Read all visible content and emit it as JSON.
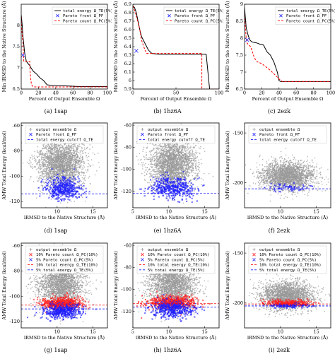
{
  "chart_data": [
    {
      "id": "a",
      "type": "line",
      "caption": "(a)  1sap",
      "xlabel": "Percent of Output Ensemble Ω",
      "ylabel": "Min lRMSD to the Native Structure (Å)",
      "xlim": [
        0,
        100
      ],
      "ylim": [
        6.5,
        8.5
      ],
      "xticks": [
        0,
        20,
        40,
        60,
        80,
        100
      ],
      "yticks": [
        6.5,
        7,
        7.5,
        8
      ],
      "legend": [
        "total energy Ω_TE(5%)",
        "Pareto front Ω_PF",
        "Pareto count Ω_PC(5%)"
      ],
      "series": [
        {
          "name": "total energy Ω_TE(5%)",
          "color": "#000000",
          "dash": "",
          "x": [
            0,
            1,
            2,
            3,
            4,
            5,
            6,
            8,
            10,
            12,
            14,
            18,
            22,
            26,
            30,
            38,
            46,
            56,
            66,
            76,
            86,
            100
          ],
          "y": [
            8.25,
            8.05,
            7.75,
            7.55,
            7.35,
            7.25,
            7.15,
            7.1,
            7.05,
            6.98,
            6.92,
            6.85,
            6.76,
            6.7,
            6.6,
            6.58,
            6.58,
            6.57,
            6.56,
            6.56,
            6.56,
            6.56
          ]
        },
        {
          "name": "Pareto count Ω_PC(5%)",
          "color": "#ff0000",
          "dash": "3,2",
          "x": [
            0,
            1,
            2,
            3,
            5,
            7,
            9,
            10,
            10,
            11,
            12,
            14,
            18,
            24,
            100
          ],
          "y": [
            8.2,
            7.8,
            7.6,
            7.15,
            7.15,
            7.15,
            7.15,
            7.15,
            7.0,
            6.75,
            6.6,
            6.55,
            6.55,
            6.55,
            6.55
          ]
        }
      ],
      "pareto_front": [
        {
          "x": 2,
          "y": 7.3
        }
      ]
    },
    {
      "id": "b",
      "type": "line",
      "caption": "(b)  1hz6A",
      "xlabel": "Percent of Output Ensemble Ω",
      "ylabel": "Min lRMSD to the Native Structure (Å)",
      "xlim": [
        0,
        100
      ],
      "ylim": [
        5.9,
        6.9
      ],
      "xticks": [
        0,
        50,
        100
      ],
      "yticks": [
        5.9,
        6,
        6.1,
        6.2,
        6.3,
        6.4,
        6.5,
        6.6,
        6.7,
        6.8,
        6.9
      ],
      "legend": [
        "total energy Ω_TE(5%)",
        "Pareto front Ω_PF",
        "Pareto count Ω_PC(5%)"
      ],
      "series": [
        {
          "name": "total energy Ω_TE(5%)",
          "color": "#000000",
          "dash": "",
          "x": [
            0,
            2,
            4,
            6,
            8,
            10,
            12,
            15,
            18,
            22,
            30,
            50,
            70,
            85,
            88,
            89,
            100
          ],
          "y": [
            6.88,
            6.86,
            6.8,
            6.7,
            6.6,
            6.52,
            6.48,
            6.42,
            6.36,
            6.32,
            6.31,
            6.31,
            6.31,
            6.31,
            6.0,
            5.9,
            5.9
          ]
        },
        {
          "name": "Pareto count Ω_PC(5%)",
          "color": "#ff0000",
          "dash": "3,2",
          "x": [
            0,
            3,
            6,
            8,
            10,
            12,
            14,
            16,
            20,
            40,
            60,
            80,
            80,
            82,
            100
          ],
          "y": [
            6.88,
            6.8,
            6.68,
            6.6,
            6.48,
            6.42,
            6.36,
            6.32,
            6.32,
            6.32,
            6.32,
            6.32,
            5.9,
            5.9,
            5.9
          ]
        }
      ],
      "pareto_front": [
        {
          "x": 4,
          "y": 6.35
        }
      ]
    },
    {
      "id": "c",
      "type": "line",
      "caption": "(c)  2ezk",
      "xlabel": "Percent of Output Ensemble Ω",
      "ylabel": "Min lRMSD to the Native Structure (Å)",
      "xlim": [
        0,
        100
      ],
      "ylim": [
        6.5,
        9
      ],
      "xticks": [
        0,
        20,
        40,
        60,
        80,
        100
      ],
      "yticks": [
        6.5,
        7,
        7.5,
        8,
        8.5,
        9
      ],
      "legend": [
        "total energy Ω_TE(5%)",
        "Pareto front Ω_PF",
        "Pareto count Ω_PC(5%)"
      ],
      "series": [
        {
          "name": "total energy Ω_TE(5%)",
          "color": "#000000",
          "dash": "",
          "x": [
            0,
            1,
            2,
            4,
            6,
            8,
            10,
            14,
            18,
            22,
            26,
            30,
            34,
            38,
            40,
            42,
            100
          ],
          "y": [
            8.9,
            8.6,
            8.3,
            8.1,
            7.95,
            7.9,
            7.88,
            7.86,
            7.82,
            7.8,
            7.6,
            7.5,
            7.3,
            7.0,
            6.75,
            6.72,
            6.72
          ]
        },
        {
          "name": "Pareto count Ω_PC(5%)",
          "color": "#ff0000",
          "dash": "3,2",
          "x": [
            0,
            1,
            2,
            3,
            5,
            7,
            9,
            11,
            13,
            15,
            20,
            25,
            30,
            34,
            38,
            42,
            44,
            100
          ],
          "y": [
            8.7,
            8.3,
            8.0,
            7.85,
            7.8,
            7.75,
            7.6,
            7.45,
            7.35,
            7.3,
            7.25,
            7.15,
            7.05,
            6.95,
            6.85,
            6.75,
            6.72,
            6.72
          ]
        }
      ],
      "pareto_front": [
        {
          "x": 3,
          "y": 7.95
        }
      ]
    },
    {
      "id": "d",
      "type": "scatter",
      "caption": "(d)  1sap",
      "xlabel": "lRMSD to the Native Structure (Å)",
      "ylabel": "AMW Total Energy (kcal/mol)",
      "xlim": [
        5,
        17
      ],
      "ylim": [
        -125,
        -58
      ],
      "xticks": [
        10,
        15
      ],
      "yticks": [
        -120,
        -100,
        -80,
        -60
      ],
      "legend": [
        "output ensemble Ω",
        "Pareto front Ω_PF",
        "total energy cutoff Ω_TE"
      ],
      "cloud": {
        "cx": 10.6,
        "cy": -90,
        "sx": 1.5,
        "sy": 10,
        "n": 2600
      },
      "blue": {
        "cx": 10.8,
        "cy": -110,
        "sx": 1.3,
        "sy": 4.5,
        "n": 420,
        "ymin": -120
      },
      "cutoff": -114
    },
    {
      "id": "e",
      "type": "scatter",
      "caption": "(e)  1hz6A",
      "xlabel": "lRMSD to the Native Structure (Å)",
      "ylabel": "AMW Total Energy (kcal/mol)",
      "xlim": [
        5,
        17
      ],
      "ylim": [
        -135,
        -58
      ],
      "xticks": [
        5,
        10,
        15
      ],
      "yticks": [
        -120,
        -100,
        -80,
        -60
      ],
      "legend": [
        "output ensemble Ω",
        "Pareto front Ω_PF",
        "total energy cutoff Ω_TE"
      ],
      "cloud": {
        "cx": 10.5,
        "cy": -95,
        "sx": 1.5,
        "sy": 11,
        "n": 2600
      },
      "blue": {
        "cx": 10.5,
        "cy": -117,
        "sx": 1.6,
        "sy": 5,
        "n": 420,
        "ymin": -130
      },
      "cutoff": -122
    },
    {
      "id": "f",
      "type": "scatter",
      "caption": "(f)  2ezk",
      "xlabel": "lRMSD to the Native Structure (Å)",
      "ylabel": "AMW Total Energy (kcal/mol)",
      "xlim": [
        5,
        17
      ],
      "ylim": [
        -225,
        -140
      ],
      "xticks": [
        10,
        15
      ],
      "yticks": [
        -200,
        -150
      ],
      "legend": [
        "output ensemble Ω",
        "Pareto front Ω_PF",
        "total energy cutoff Ω_TE"
      ],
      "cloud": {
        "cx": 11,
        "cy": -193,
        "sx": 1.7,
        "sy": 7,
        "n": 2400
      },
      "blue": {
        "cx": 11,
        "cy": -205,
        "sx": 1.6,
        "sy": 2,
        "n": 60,
        "ymin": -212
      },
      "cutoff": -206
    },
    {
      "id": "g",
      "type": "scatter",
      "caption": "(g)  1sap",
      "xlabel": "lRMSD to the Native Structure (Å)",
      "ylabel": "AMW Total Energy (kcal/mol)",
      "xlim": [
        5,
        17
      ],
      "ylim": [
        -125,
        -58
      ],
      "xticks": [
        10,
        15
      ],
      "yticks": [
        -120,
        -100,
        -80,
        -60
      ],
      "legend": [
        "output ensemble Ω",
        "10% Pareto count Ω_PC(10%)",
        "5% Pareto count Ω_PC(5%)",
        "10% total energy Ω_TE(10%)",
        "5% total energy Ω_TE(5%)"
      ],
      "cloud": {
        "cx": 10.6,
        "cy": -90,
        "sx": 1.5,
        "sy": 10,
        "n": 2600
      },
      "red": {
        "cx": 10.6,
        "cy": -106,
        "sx": 1.3,
        "sy": 2.5,
        "n": 600
      },
      "blue": {
        "cx": 10.7,
        "cy": -112,
        "sx": 1.3,
        "sy": 3,
        "n": 420,
        "ymin": -120
      },
      "cutoffs": [
        {
          "y": -107,
          "color": "#ff0000"
        },
        {
          "y": -110,
          "color": "#0000ff"
        }
      ]
    },
    {
      "id": "h",
      "type": "scatter",
      "caption": "(h)  1hz6A",
      "xlabel": "lRMSD to the Native Structure (Å)",
      "ylabel": "AMW Total Energy (kcal/mol)",
      "xlim": [
        5,
        17
      ],
      "ylim": [
        -135,
        -58
      ],
      "xticks": [
        5,
        10,
        15
      ],
      "yticks": [
        -120,
        -100,
        -80,
        -60
      ],
      "legend": [
        "output ensemble Ω",
        "10% Pareto count Ω_PC(10%)",
        "5% Pareto count Ω_PC(5%)",
        "10% total energy Ω_TE(10%)",
        "5% total energy Ω_TE(5%)"
      ],
      "cloud": {
        "cx": 10.5,
        "cy": -95,
        "sx": 1.5,
        "sy": 11,
        "n": 2600
      },
      "red": {
        "cx": 10.5,
        "cy": -112,
        "sx": 1.6,
        "sy": 3,
        "n": 600
      },
      "blue": {
        "cx": 10.5,
        "cy": -118,
        "sx": 1.6,
        "sy": 4,
        "n": 420,
        "ymin": -130
      },
      "cutoffs": [
        {
          "y": -113,
          "color": "#ff0000"
        },
        {
          "y": -116,
          "color": "#0000ff"
        }
      ]
    },
    {
      "id": "i",
      "type": "scatter",
      "caption": "(i)  2ezk",
      "xlabel": "lRMSD to the Native Structure (Å)",
      "ylabel": "AMW Total Energy (kcal/mol)",
      "xlim": [
        5,
        17
      ],
      "ylim": [
        -225,
        -140
      ],
      "xticks": [
        10,
        15
      ],
      "yticks": [
        -200,
        -150
      ],
      "legend": [
        "output ensemble Ω",
        "10% Pareto count Ω_PC(10%)",
        "5% Pareto count Ω_PC(5%)",
        "10% total energy Ω_TE(10%)",
        "5% total energy Ω_TE(5%)"
      ],
      "cloud": {
        "cx": 11,
        "cy": -193,
        "sx": 1.7,
        "sy": 7,
        "n": 2400
      },
      "red": {
        "cx": 11,
        "cy": -200,
        "sx": 1.6,
        "sy": 1.6,
        "n": 300
      },
      "blue": {
        "cx": 11,
        "cy": -203,
        "sx": 1.6,
        "sy": 1.2,
        "n": 80,
        "ymin": -210
      },
      "cutoffs": [
        {
          "y": -201,
          "color": "#ff0000"
        },
        {
          "y": -203,
          "color": "#0000ff"
        }
      ]
    }
  ]
}
